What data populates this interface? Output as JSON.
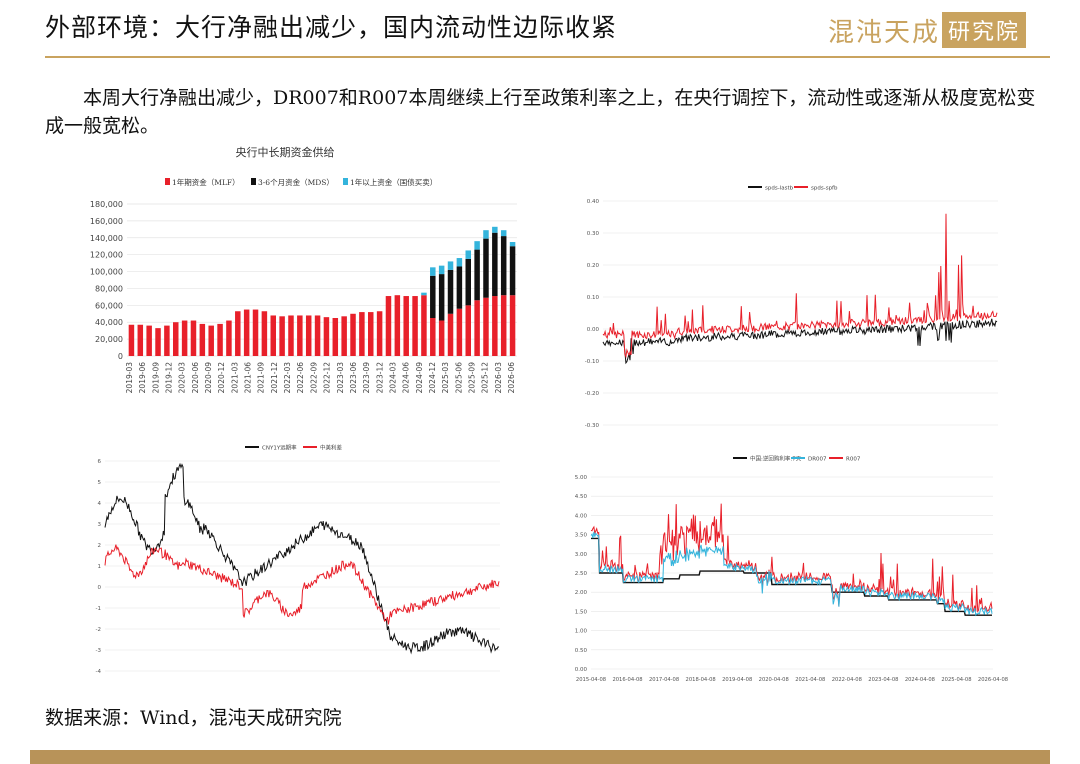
{
  "page": {
    "title": "外部环境：大行净融出减少，国内流动性边际收紧",
    "logo_text_a": "混沌天成",
    "logo_text_b": "研究院",
    "paragraph": "本周大行净融出减少，DR007和R007本周继续上行至政策利率之上，在央行调控下，流动性或逐渐从极度宽松变成一般宽松。",
    "source": "数据来源：Wind，混沌天成研究院"
  },
  "colors": {
    "red": "#e8202a",
    "black": "#111111",
    "cyan": "#34b4dc",
    "gold": "#c9a35f"
  },
  "chart_data": [
    {
      "type": "bar",
      "title": "央行中长期资金供给",
      "legend_position": "top",
      "series": [
        {
          "name": "1年期资金（MLF）",
          "color": "#e8202a"
        },
        {
          "name": "3-6个月资金（MDS）",
          "color": "#111111"
        },
        {
          "name": "1年以上资金（国债买卖）",
          "color": "#34b4dc"
        }
      ],
      "ylim": [
        0,
        180000
      ],
      "yticks": [
        "180,000",
        "160,000",
        "140,000",
        "120,000",
        "100,000",
        "80,000",
        "60,000",
        "40,000",
        "20,000",
        "0"
      ],
      "xticks": [
        "2019-03",
        "2019-06",
        "2019-09",
        "2019-12",
        "2020-03",
        "2020-06",
        "2020-09",
        "2020-12",
        "2021-03",
        "2021-06",
        "2021-09",
        "2021-12",
        "2022-03",
        "2022-06",
        "2022-09",
        "2022-12",
        "2023-03",
        "2023-06",
        "2023-09",
        "2023-12",
        "2024-03",
        "2024-06",
        "2024-09",
        "2024-12",
        "2025-03",
        "2025-06",
        "2025-09",
        "2025-12",
        "2026-03",
        "2026-06"
      ],
      "mlf": [
        37000,
        37000,
        36000,
        33000,
        36000,
        40000,
        42000,
        42000,
        38000,
        36000,
        38000,
        42000,
        53000,
        55000,
        55000,
        53000,
        48000,
        47000,
        48000,
        48000,
        48000,
        48000,
        46000,
        45000,
        47000,
        50000,
        52000,
        52000,
        53000,
        71000,
        72000,
        71000,
        71000,
        72000,
        45000,
        42000,
        50000,
        56000,
        60000,
        66000,
        69000,
        71000,
        72000,
        72000
      ],
      "mds": [
        0,
        0,
        0,
        0,
        0,
        0,
        0,
        0,
        0,
        0,
        0,
        0,
        0,
        0,
        0,
        0,
        0,
        0,
        0,
        0,
        0,
        0,
        0,
        0,
        0,
        0,
        0,
        0,
        0,
        0,
        0,
        0,
        0,
        0,
        50000,
        55000,
        52000,
        50000,
        55000,
        60000,
        70000,
        75000,
        70000,
        58000
      ],
      "bond": [
        0,
        0,
        0,
        0,
        0,
        0,
        0,
        0,
        0,
        0,
        0,
        0,
        0,
        0,
        0,
        0,
        0,
        0,
        0,
        0,
        0,
        0,
        0,
        0,
        0,
        0,
        0,
        0,
        0,
        0,
        0,
        0,
        0,
        3000,
        10000,
        10000,
        10000,
        10000,
        10000,
        10000,
        10000,
        7000,
        7000,
        5000
      ]
    },
    {
      "type": "line",
      "series": [
        {
          "name": "spds-lastb",
          "color": "#111111"
        },
        {
          "name": "spds-spfb",
          "color": "#e8202a"
        }
      ],
      "ylim": [
        -0.3,
        0.4
      ],
      "yticks": [
        "0.40",
        "0.30",
        "0.20",
        "0.10",
        "0.00",
        "-0.10",
        "-0.20",
        "-0.30"
      ]
    },
    {
      "type": "line",
      "series": [
        {
          "name": "CNY1Y远期率",
          "color": "#111111"
        },
        {
          "name": "中美利差",
          "color": "#e8202a"
        }
      ],
      "ylim": [
        -4,
        6
      ],
      "yticks": [
        "6",
        "5",
        "4",
        "3",
        "2",
        "1",
        "0",
        "-1",
        "-2",
        "-3",
        "-4"
      ]
    },
    {
      "type": "line",
      "series": [
        {
          "name": "中国:逆回购利率:7天",
          "color": "#111111"
        },
        {
          "name": "DR007",
          "color": "#34b4dc"
        },
        {
          "name": "R007",
          "color": "#e8202a"
        }
      ],
      "ylim": [
        0,
        5
      ],
      "yticks": [
        "5.00",
        "4.50",
        "4.00",
        "3.50",
        "3.00",
        "2.50",
        "2.00",
        "1.50",
        "1.00",
        "0.50",
        "0.00"
      ],
      "xticks": [
        "2015-04-08",
        "2016-04-08",
        "2017-04-08",
        "2018-04-08",
        "2019-04-08",
        "2020-04-08",
        "2021-04-08",
        "2022-04-08",
        "2023-04-08",
        "2024-04-08",
        "2025-04-08",
        "2026-04-08"
      ]
    }
  ]
}
